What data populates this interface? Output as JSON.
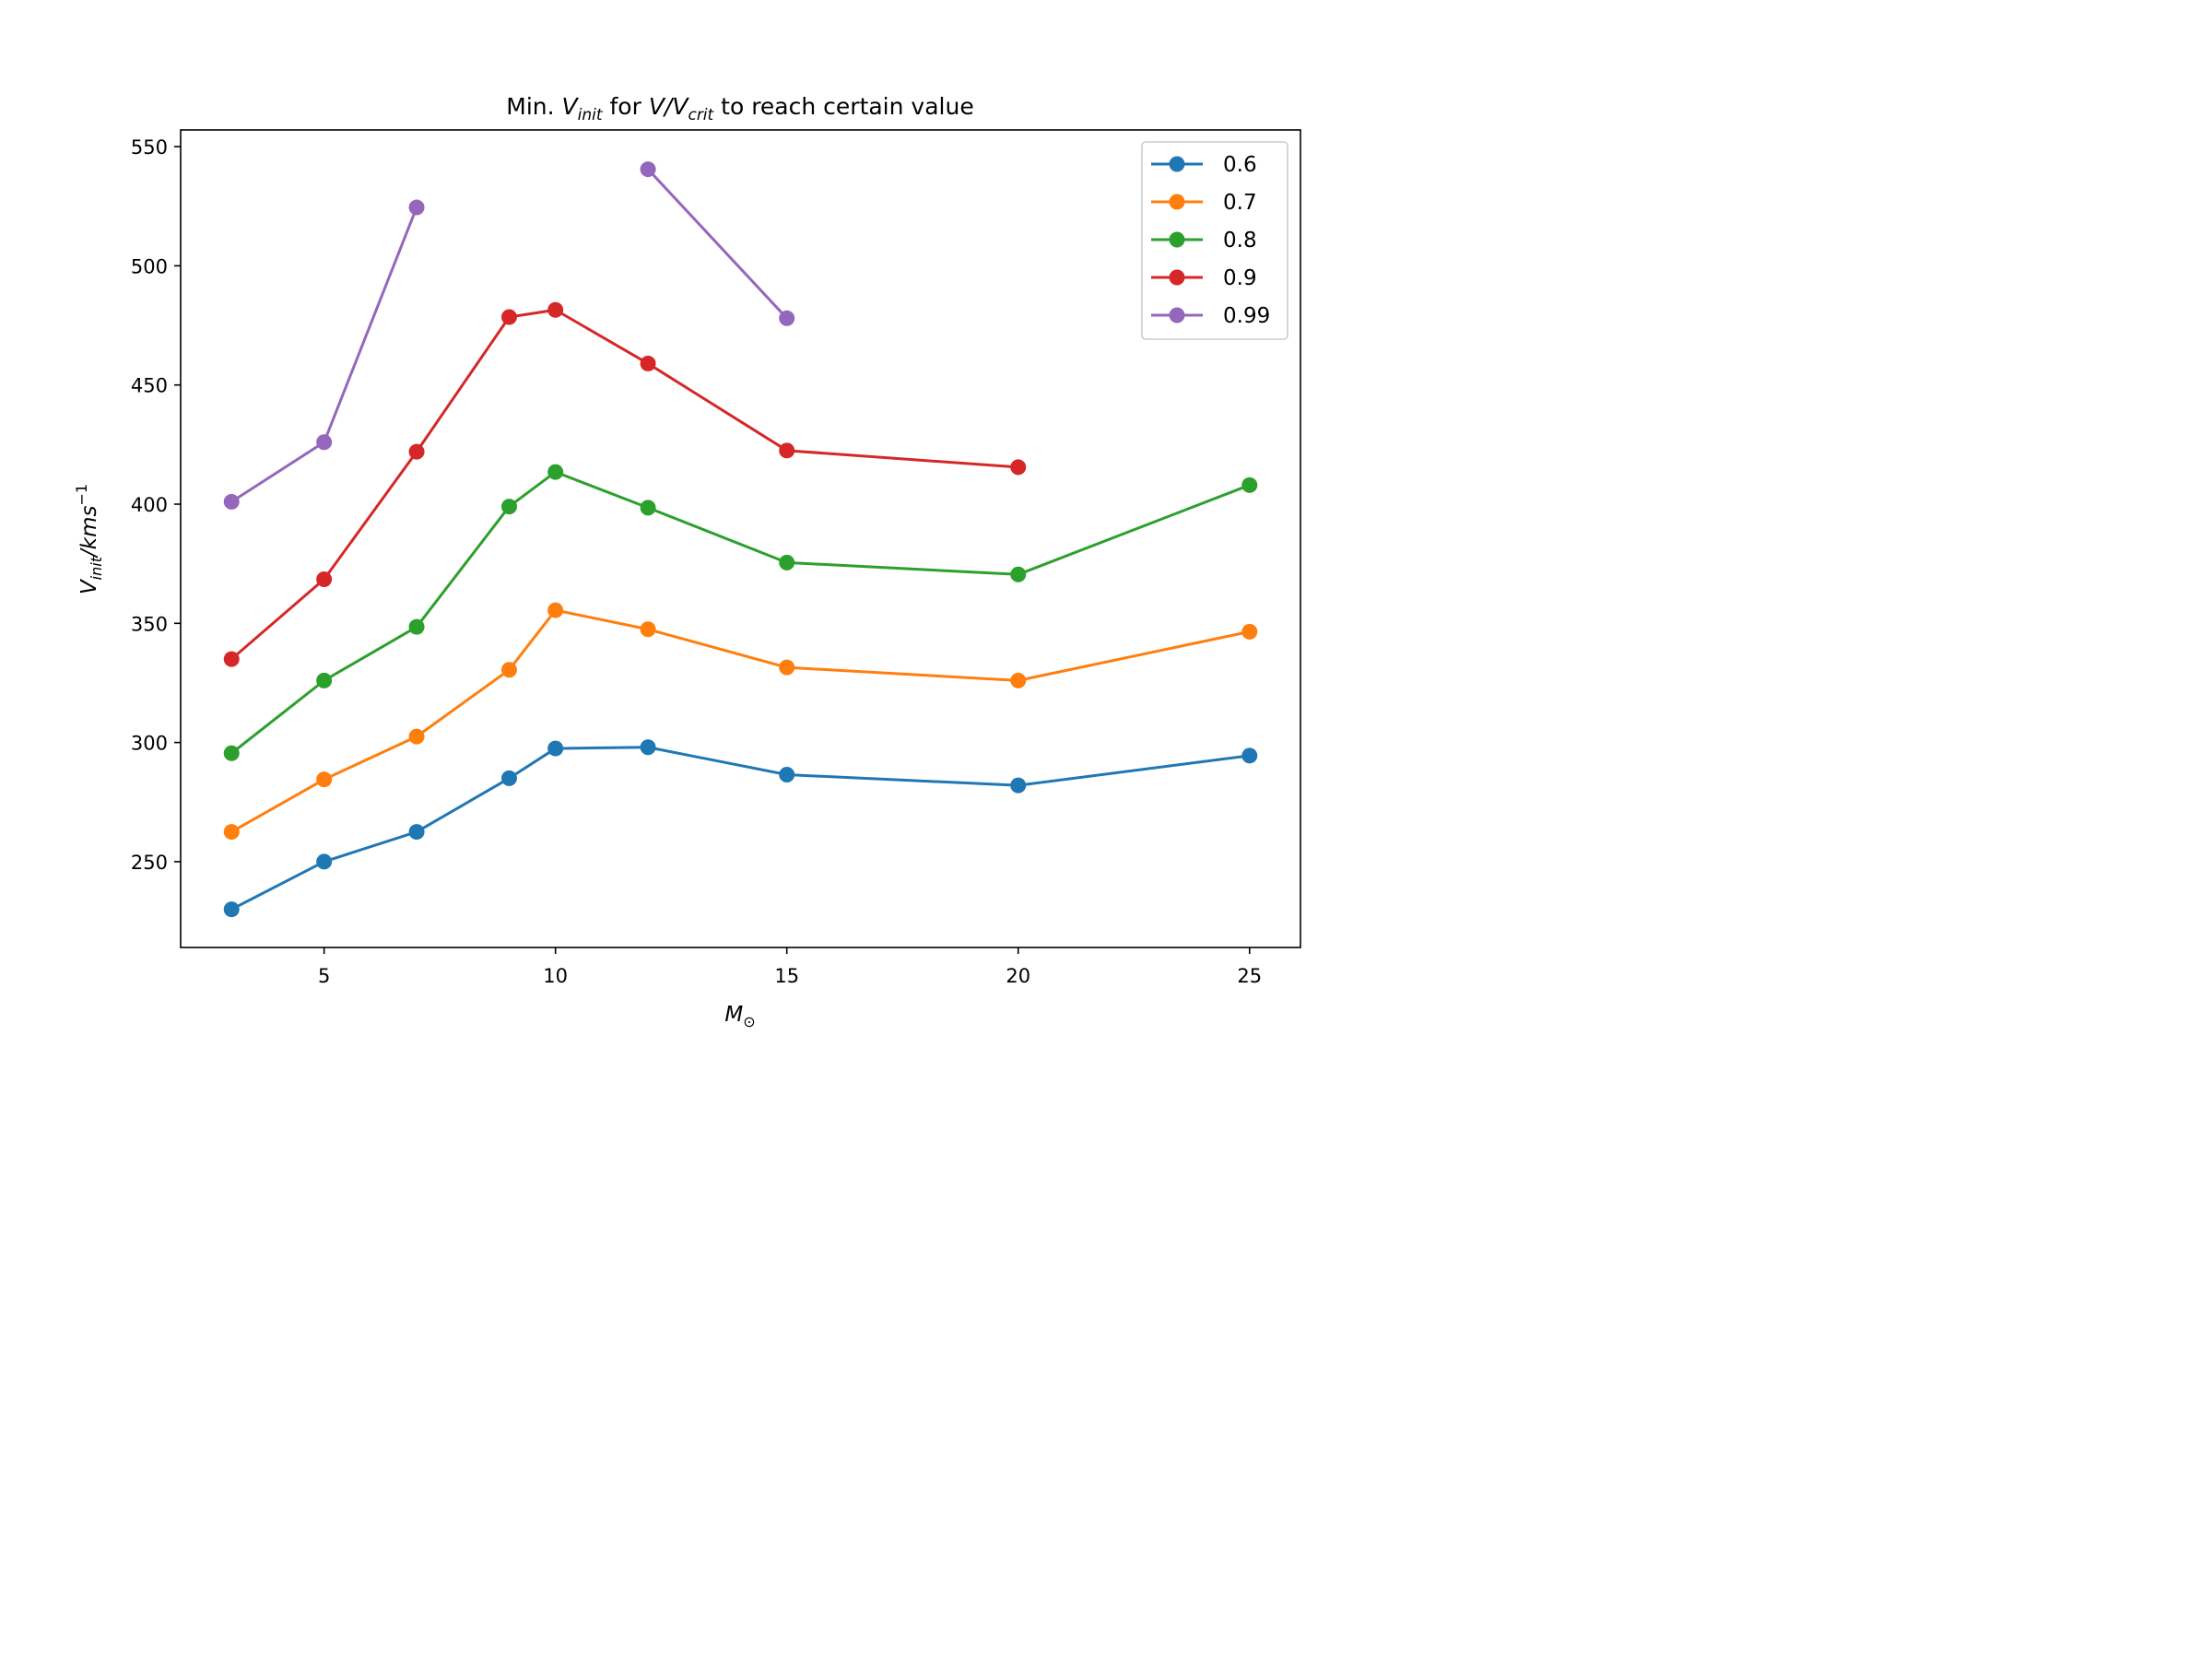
{
  "chart_data": {
    "type": "line",
    "title": {
      "prefix": "Min. ",
      "v1": "V",
      "v1_sub": "init",
      "middle": " for ",
      "v2": "V/V",
      "v2_sub": "crit",
      "suffix": " to reach certain value"
    },
    "xlabel": {
      "main": "M",
      "sub": "⊙"
    },
    "ylabel": {
      "v": "V",
      "sub": "init",
      "rest": "/kms",
      "sup": "−1"
    },
    "xlim": [
      1.9,
      26.1
    ],
    "ylim": [
      214,
      557
    ],
    "xticks": [
      5,
      10,
      15,
      20,
      25
    ],
    "yticks": [
      250,
      300,
      350,
      400,
      450,
      500,
      550
    ],
    "legend_position": "top-right",
    "grid": false,
    "series": [
      {
        "name": "0.6",
        "color": "#1f77b4",
        "segments": [
          [
            [
              3,
              230
            ],
            [
              5,
              250
            ],
            [
              7,
              262.5
            ],
            [
              9,
              285
            ],
            [
              10,
              297.5
            ],
            [
              12,
              298
            ],
            [
              15,
              286.5
            ],
            [
              20,
              282
            ],
            [
              25,
              294.5
            ]
          ]
        ]
      },
      {
        "name": "0.7",
        "color": "#ff7f0e",
        "segments": [
          [
            [
              3,
              262.5
            ],
            [
              5,
              284.5
            ],
            [
              7,
              302.5
            ],
            [
              9,
              330.5
            ],
            [
              10,
              355.5
            ],
            [
              12,
              347.5
            ],
            [
              15,
              331.5
            ],
            [
              20,
              326
            ],
            [
              25,
              346.5
            ]
          ]
        ]
      },
      {
        "name": "0.8",
        "color": "#2ca02c",
        "segments": [
          [
            [
              3,
              295.5
            ],
            [
              5,
              326
            ],
            [
              7,
              348.5
            ],
            [
              9,
              399
            ],
            [
              10,
              413.5
            ],
            [
              12,
              398.5
            ],
            [
              15,
              375.5
            ],
            [
              20,
              370.5
            ],
            [
              25,
              408
            ]
          ]
        ]
      },
      {
        "name": "0.9",
        "color": "#d62728",
        "segments": [
          [
            [
              3,
              335
            ],
            [
              5,
              368.5
            ],
            [
              7,
              422
            ],
            [
              9,
              478.5
            ],
            [
              10,
              481.5
            ],
            [
              12,
              459
            ],
            [
              15,
              422.5
            ],
            [
              20,
              415.5
            ]
          ]
        ]
      },
      {
        "name": "0.99",
        "color": "#9467bd",
        "segments": [
          [
            [
              3,
              401
            ],
            [
              5,
              426
            ],
            [
              7,
              524.5
            ]
          ],
          [
            [
              12,
              540.5
            ],
            [
              15,
              478
            ]
          ]
        ]
      }
    ]
  }
}
